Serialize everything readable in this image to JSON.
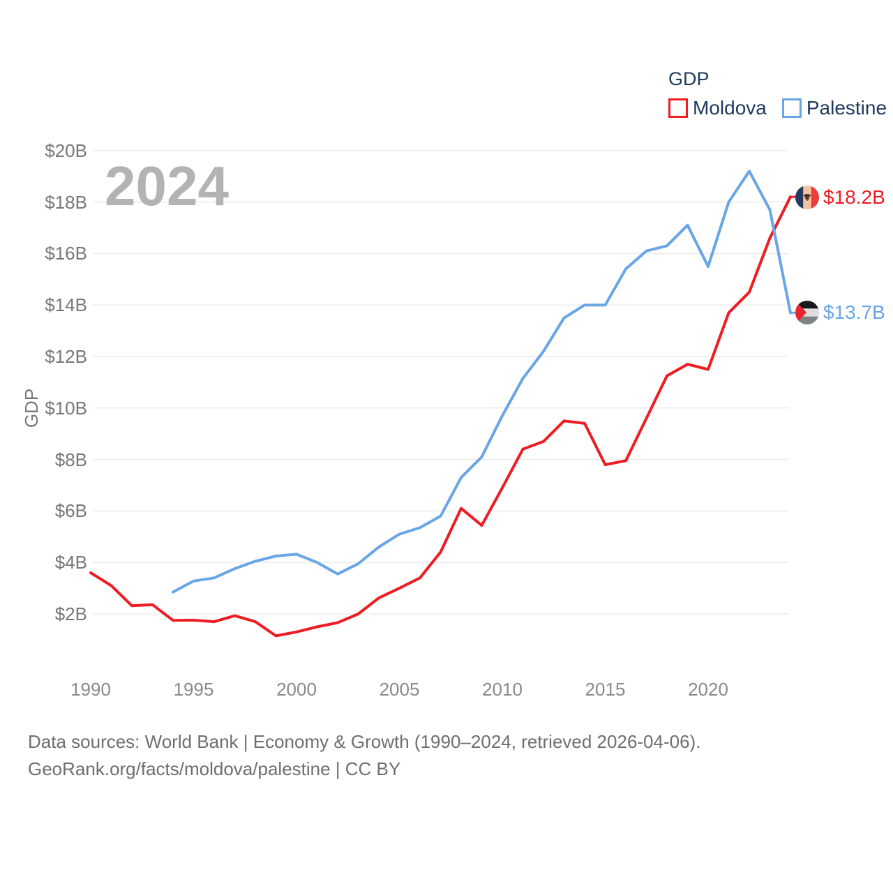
{
  "watermark": "2024",
  "legend": {
    "title": "GDP",
    "items": [
      {
        "label": "Moldova",
        "color": "#ee1c23"
      },
      {
        "label": "Palestine",
        "color": "#68a6e5"
      }
    ]
  },
  "axes": {
    "y_label": "GDP",
    "y_tick_labels": [
      "$2B",
      "$4B",
      "$6B",
      "$8B",
      "$10B",
      "$12B",
      "$14B",
      "$16B",
      "$18B",
      "$20B"
    ],
    "y_tick_values": [
      2,
      4,
      6,
      8,
      10,
      12,
      14,
      16,
      18,
      20
    ],
    "x_tick_labels": [
      "1990",
      "1995",
      "2000",
      "2005",
      "2010",
      "2015",
      "2020"
    ],
    "x_tick_values": [
      1990,
      1995,
      2000,
      2005,
      2010,
      2015,
      2020
    ]
  },
  "footer": {
    "line1": "Data sources: World Bank | Economy & Growth (1990–2024, retrieved 2026-04-06).",
    "line2": "GeoRank.org/facts/moldova/palestine | CC BY"
  },
  "chart_data": {
    "type": "line",
    "title": "GDP",
    "ylabel": "GDP",
    "unit": "billion USD (current)",
    "ylim": [
      0,
      20
    ],
    "x_range": [
      1990,
      2024
    ],
    "grid": "horizontal",
    "legend_position": "top-right",
    "series": [
      {
        "name": "Moldova",
        "color": "#ee1c23",
        "end_label": "$18.2B",
        "end_value": 18.2,
        "years": [
          1990,
          1991,
          1992,
          1993,
          1994,
          1995,
          1996,
          1997,
          1998,
          1999,
          2000,
          2001,
          2002,
          2003,
          2004,
          2005,
          2006,
          2007,
          2008,
          2009,
          2010,
          2011,
          2012,
          2013,
          2014,
          2015,
          2016,
          2017,
          2018,
          2019,
          2020,
          2021,
          2022,
          2023,
          2024
        ],
        "values": [
          3.6,
          3.1,
          2.32,
          2.36,
          1.75,
          1.76,
          1.7,
          1.93,
          1.7,
          1.15,
          1.3,
          1.5,
          1.66,
          2.0,
          2.62,
          3.0,
          3.4,
          4.4,
          6.1,
          5.44,
          6.9,
          8.4,
          8.7,
          9.5,
          9.4,
          7.8,
          7.95,
          9.6,
          11.25,
          11.7,
          11.5,
          13.7,
          14.5,
          16.6,
          18.2
        ]
      },
      {
        "name": "Palestine",
        "color": "#68a6e5",
        "end_label": "$13.7B",
        "end_value": 13.7,
        "years": [
          1994,
          1995,
          1996,
          1997,
          1998,
          1999,
          2000,
          2001,
          2002,
          2003,
          2004,
          2005,
          2006,
          2007,
          2008,
          2009,
          2010,
          2011,
          2012,
          2013,
          2014,
          2015,
          2016,
          2017,
          2018,
          2019,
          2020,
          2021,
          2022,
          2023,
          2024
        ],
        "values": [
          2.85,
          3.28,
          3.4,
          3.76,
          4.05,
          4.25,
          4.32,
          4.0,
          3.55,
          3.95,
          4.6,
          5.1,
          5.35,
          5.8,
          7.3,
          8.1,
          9.7,
          11.15,
          12.2,
          13.5,
          14.0,
          14.0,
          15.4,
          16.1,
          16.3,
          17.1,
          15.5,
          18.0,
          19.2,
          17.7,
          13.7
        ]
      }
    ]
  }
}
